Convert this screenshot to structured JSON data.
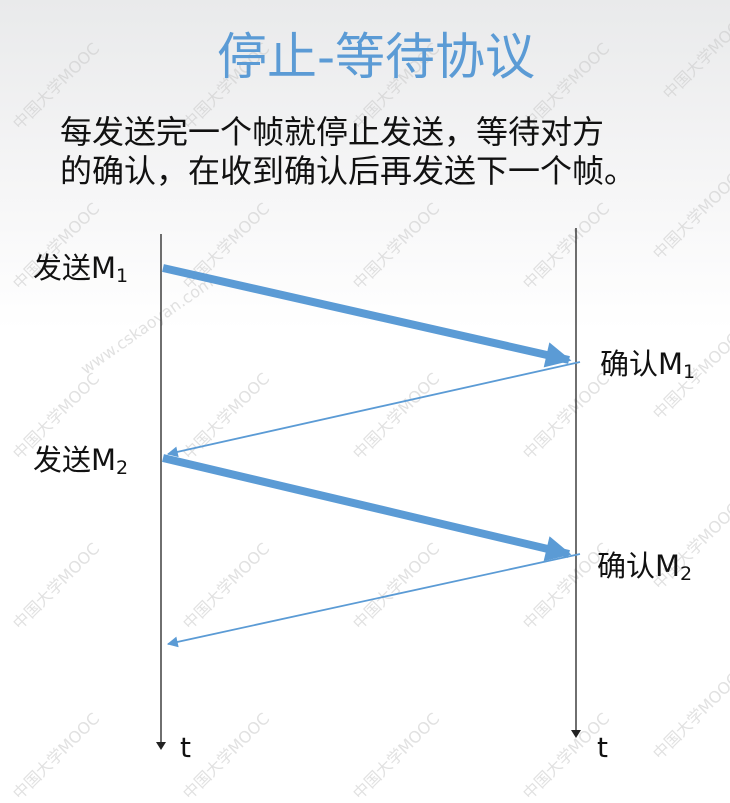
{
  "title": "停止-等待协议",
  "description": {
    "line1": "每发送完一个帧就停止发送，等待对方",
    "line2": "的确认，在收到确认后再发送下一个帧。"
  },
  "events": {
    "send1": {
      "prefix": "发送M",
      "sub": "1"
    },
    "ack1": {
      "prefix": "确认M",
      "sub": "1"
    },
    "send2": {
      "prefix": "发送M",
      "sub": "2"
    },
    "ack2": {
      "prefix": "确认M",
      "sub": "2"
    }
  },
  "timelines": {
    "left_label": "t",
    "right_label": "t"
  },
  "watermark": {
    "text": "中国大学MOOC",
    "brand": "www.cskaoyan.com"
  },
  "colors": {
    "title": "#5b9bd5",
    "arrow": "#5b9bd5",
    "line": "#222222"
  }
}
